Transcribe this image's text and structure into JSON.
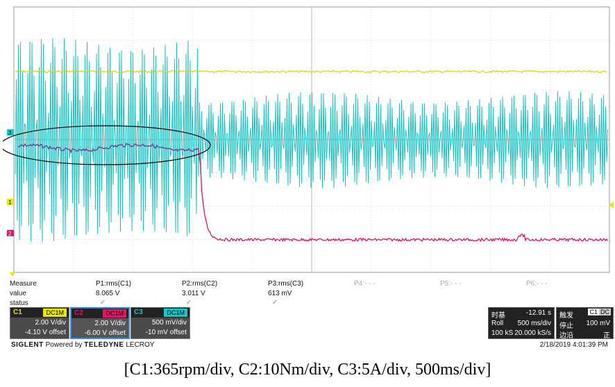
{
  "measure": {
    "row_labels": {
      "measure": "Measure",
      "value": "value",
      "status": "status"
    },
    "params": [
      {
        "name": "P1:rms(C1)",
        "value": "8.065 V",
        "active": true
      },
      {
        "name": "P2:rms(C2)",
        "value": "3.011 V",
        "active": true
      },
      {
        "name": "P3:rms(C3)",
        "value": "613 mV",
        "active": true
      },
      {
        "name": "P4:- - -",
        "value": "",
        "active": false
      },
      {
        "name": "P5:- - -",
        "value": "",
        "active": false
      },
      {
        "name": "P6:- - -",
        "value": "",
        "active": false
      }
    ]
  },
  "channels": [
    {
      "label": "C1",
      "coupling": "DC1M",
      "vdiv": "2.00 V/div",
      "offset": "-4.10 V offset",
      "color": "#e8e800"
    },
    {
      "label": "C2",
      "coupling": "DC1M",
      "vdiv": "2.00 V/div",
      "offset": "-6.00 V offset",
      "color": "#e0166a"
    },
    {
      "label": "C3",
      "coupling": "DC1M",
      "vdiv": "500 mV/div",
      "offset": "-10 mV offset",
      "color": "#17c7c7"
    }
  ],
  "markers": {
    "c3": "3",
    "c1": "1",
    "c2": "2"
  },
  "timebase": {
    "title": "时基",
    "delay": "-12.91 s",
    "mode": "Roll",
    "tdiv": "500 ms/div",
    "samples": "100 kS",
    "rate": "20.000 kS/s"
  },
  "trigger": {
    "title": "触发",
    "source": "C1",
    "coupling": "DC",
    "state": "停止",
    "level": "100 mV",
    "slope_label": "边沿",
    "slope": "正"
  },
  "brand": {
    "maker": "SIGLENT",
    "powered": "Powered by",
    "partner": "TELEDYNE",
    "partner2": "LECROY"
  },
  "datetime": "2/18/2019 4:01:39 PM",
  "caption": "[C1:365rpm/div, C2:10Nm/div, C3:5A/div, 500ms/div]",
  "colors": {
    "grid": "#b8b8b8",
    "panel_bg": "#222222",
    "annotation": "#000000"
  }
}
